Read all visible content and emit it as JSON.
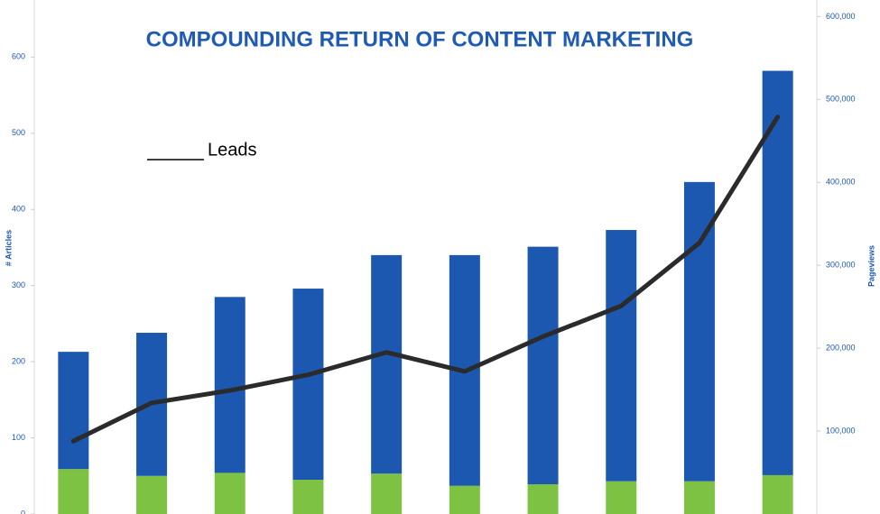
{
  "chart_data": {
    "type": "bar",
    "title": "COMPOUNDING RETURN OF CONTENT MARKETING",
    "y_label": "# Articles",
    "y2_label": "Pageviews",
    "categories": [
      null,
      null,
      null,
      null,
      null,
      null,
      null,
      null,
      null,
      null
    ],
    "stacked": true,
    "series": [
      {
        "color": "#7dc242",
        "values": [
          59,
          50,
          54,
          45,
          53,
          37,
          39,
          43,
          43,
          51
        ]
      },
      {
        "color": "#1c58b0",
        "values": [
          154,
          188,
          231,
          251,
          287,
          303,
          312,
          330,
          393,
          531
        ]
      },
      {
        "name": "Leads",
        "type": "line",
        "axis": "y2",
        "color": "#2b2b2b",
        "values": [
          88000,
          134000,
          149000,
          168000,
          195000,
          172000,
          214000,
          251000,
          327000,
          479000
        ]
      }
    ],
    "ylim": [
      0,
      675
    ],
    "yticks": [
      0,
      100,
      200,
      300,
      400,
      500,
      600
    ],
    "y2lim": [
      0,
      620000
    ],
    "y2ticks": [
      {
        "value": 100000,
        "label": "100,000"
      },
      {
        "value": 200000,
        "label": "200,000"
      },
      {
        "value": 300000,
        "label": "300,000"
      },
      {
        "value": 400000,
        "label": "400,000"
      },
      {
        "value": 500000,
        "label": "500,000"
      },
      {
        "value": 600000,
        "label": "600,000"
      }
    ],
    "legend": "upper left"
  }
}
